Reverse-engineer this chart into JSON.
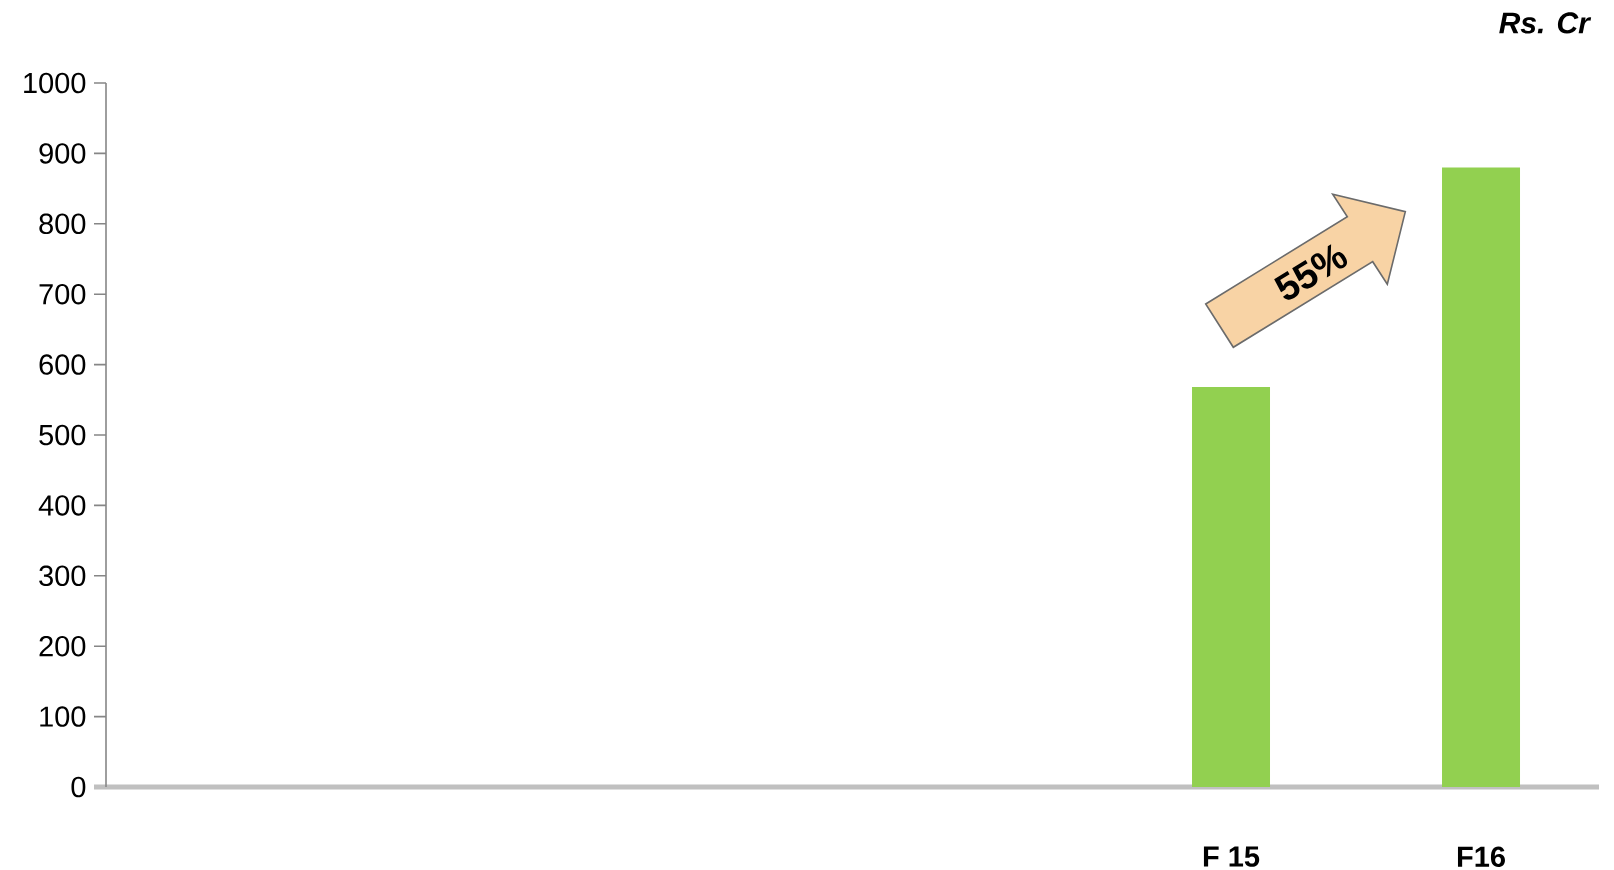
{
  "chart_data": {
    "type": "bar",
    "ylabel": "Rs. Cr",
    "categories": [
      null,
      null,
      null,
      null,
      "F 15",
      "F16"
    ],
    "values": [
      null,
      null,
      null,
      null,
      568,
      880
    ],
    "color": "#92d050",
    "ylim": [
      0,
      1000
    ],
    "yticks": [
      0,
      100,
      200,
      300,
      400,
      500,
      600,
      700,
      800,
      900,
      1000
    ],
    "annotations": [
      "55%"
    ]
  }
}
